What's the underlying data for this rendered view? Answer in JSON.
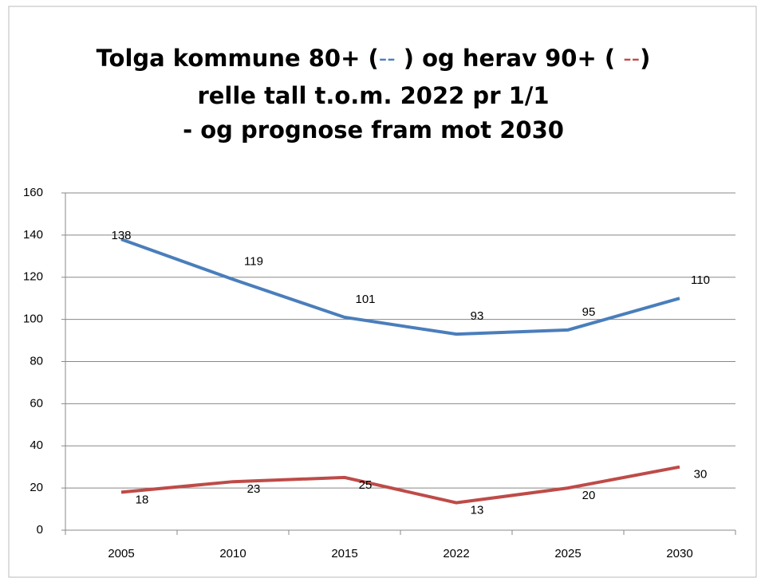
{
  "chart_data": {
    "type": "line",
    "title": [
      [
        "Tolga kommune 80+ (",
        "--",
        " ) og herav 90+ (  ",
        "--",
        ")"
      ],
      "relle tall t.o.m. 2022 pr 1/1",
      "- og prognose fram mot 2030"
    ],
    "categories": [
      "2005",
      "2010",
      "2015",
      "2022",
      "2025",
      "2030"
    ],
    "series": [
      {
        "color": "#4a7ebb",
        "values": [
          138,
          119,
          101,
          93,
          95,
          110
        ]
      },
      {
        "color": "#be4b48",
        "values": [
          18,
          23,
          25,
          13,
          20,
          30
        ]
      }
    ],
    "ylim": [
      0,
      160
    ],
    "yticks": [
      0,
      20,
      40,
      60,
      80,
      100,
      120,
      140,
      160
    ],
    "grid": true
  }
}
